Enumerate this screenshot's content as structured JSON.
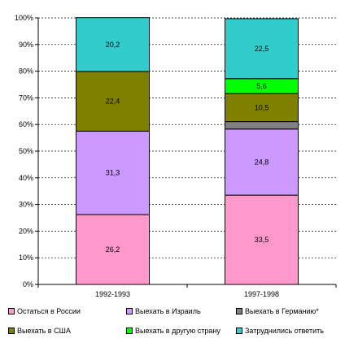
{
  "chart_data": {
    "type": "bar",
    "stacked": true,
    "categories": [
      "1992-1993",
      "1997-1998"
    ],
    "series": [
      {
        "name": "Остаться в России",
        "color": "#ff99cc",
        "values": [
          26.2,
          33.5
        ],
        "labels": [
          "26,2",
          "33,5"
        ]
      },
      {
        "name": "Выехать в Израиль",
        "color": "#cc99ff",
        "values": [
          31.3,
          24.8
        ],
        "labels": [
          "31,3",
          "24,8"
        ]
      },
      {
        "name": "Выехать в Германию*",
        "color": "#808080",
        "values": [
          0,
          2.8
        ],
        "labels": [
          "",
          ""
        ]
      },
      {
        "name": "Выехать в США",
        "color": "#808000",
        "values": [
          22.4,
          10.5
        ],
        "labels": [
          "22,4",
          "10,5"
        ]
      },
      {
        "name": "Выехать в другую страну",
        "color": "#00ff00",
        "values": [
          0,
          5.6
        ],
        "labels": [
          "",
          "5,6"
        ]
      },
      {
        "name": "Затруднились ответить",
        "color": "#33cccc",
        "values": [
          20.2,
          22.5
        ],
        "labels": [
          "20,2",
          "22,5"
        ]
      }
    ],
    "ylim": [
      0,
      100
    ],
    "yticks": [
      "0%",
      "10%",
      "20%",
      "30%",
      "40%",
      "50%",
      "60%",
      "70%",
      "80%",
      "90%",
      "100%"
    ],
    "grid": "dashed-horizontal",
    "legend_position": "bottom"
  }
}
